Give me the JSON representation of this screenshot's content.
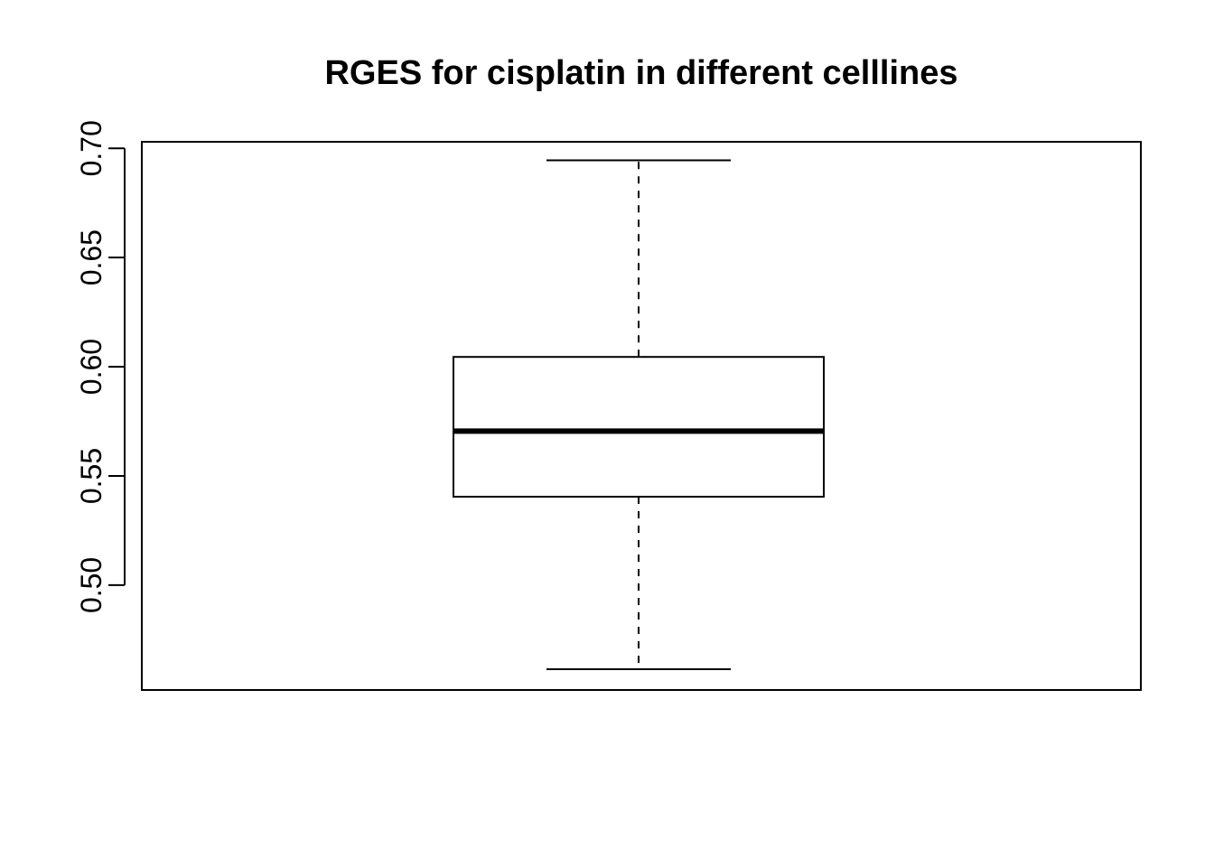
{
  "chart_data": {
    "type": "boxplot",
    "title": "RGES for cisplatin in different celllines",
    "xlabel": "",
    "ylabel": "",
    "ylim": [
      0.452,
      0.703
    ],
    "y_ticks": [
      {
        "value": 0.5,
        "label": "0.50"
      },
      {
        "value": 0.55,
        "label": "0.55"
      },
      {
        "value": 0.6,
        "label": "0.60"
      },
      {
        "value": 0.65,
        "label": "0.65"
      },
      {
        "value": 0.7,
        "label": "0.70"
      }
    ],
    "boxes": [
      {
        "whisker_low": 0.4615,
        "q1": 0.5405,
        "median": 0.5705,
        "q3": 0.6045,
        "whisker_high": 0.6945
      }
    ],
    "grid": false,
    "legend": "none",
    "colors": {
      "line": "#000000",
      "box_fill": "#ffffff",
      "background": "#ffffff"
    }
  }
}
